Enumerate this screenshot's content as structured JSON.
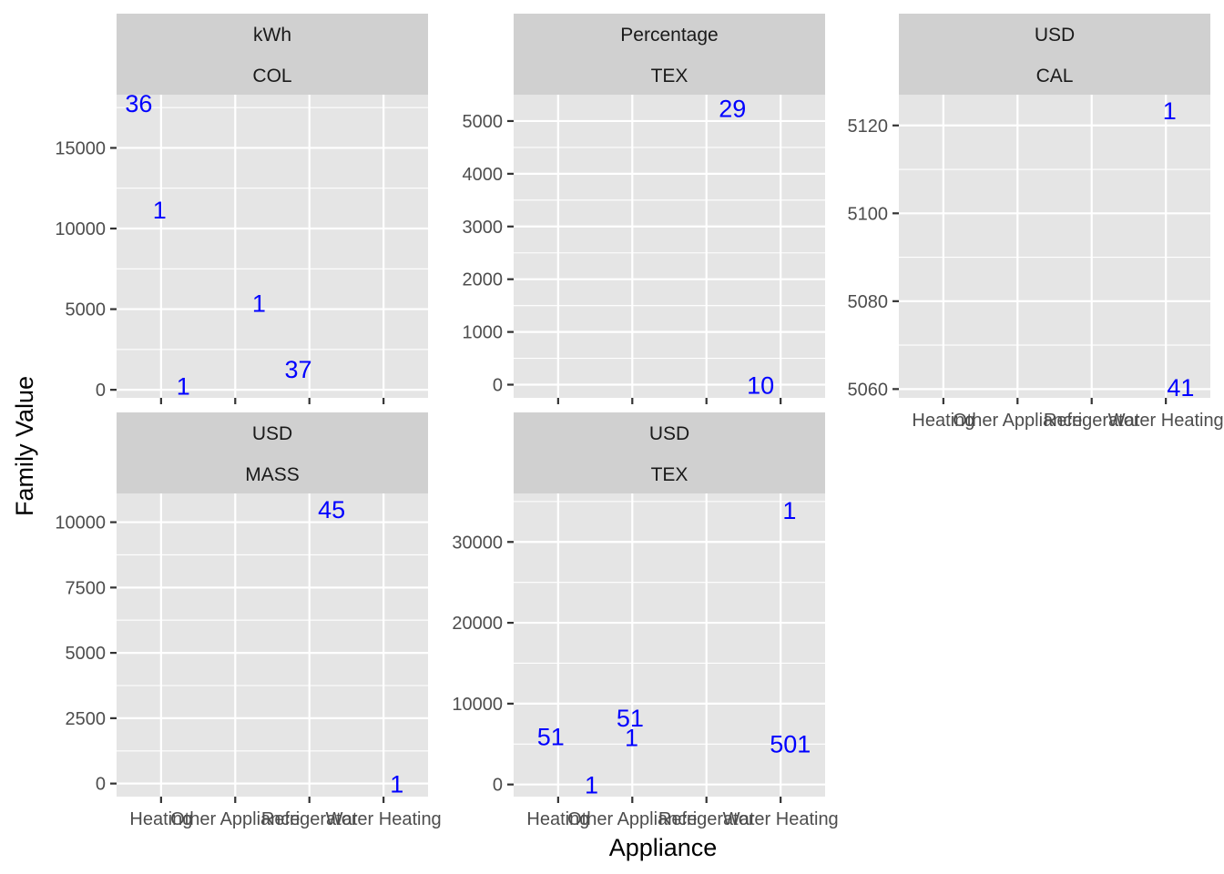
{
  "chart_data": {
    "type": "scatter",
    "xlabel": "Appliance",
    "ylabel": "Family Value",
    "x_categories": [
      "Heating",
      "Other Appliance",
      "Refrigerator",
      "Water Heating"
    ],
    "label_color": "#0000ff",
    "panels": [
      {
        "strip_top": "kWh",
        "strip_bottom": "COL",
        "ylim": [
          -500,
          18300
        ],
        "y_ticks": [
          0,
          5000,
          10000,
          15000
        ],
        "show_x_labels": false,
        "points": [
          {
            "x": 0.7,
            "y": 17800,
            "label": "36"
          },
          {
            "x": 0.98,
            "y": 11200,
            "label": "1"
          },
          {
            "x": 1.3,
            "y": 250,
            "label": "1"
          },
          {
            "x": 2.32,
            "y": 5400,
            "label": "1"
          },
          {
            "x": 2.85,
            "y": 1300,
            "label": "37"
          }
        ]
      },
      {
        "strip_top": "Percentage",
        "strip_bottom": "TEX",
        "ylim": [
          -250,
          5500
        ],
        "y_ticks": [
          0,
          1000,
          2000,
          3000,
          4000,
          5000
        ],
        "show_x_labels": false,
        "points": [
          {
            "x": 3.35,
            "y": 5250,
            "label": "29"
          },
          {
            "x": 3.73,
            "y": 0,
            "label": "10"
          }
        ]
      },
      {
        "strip_top": "USD",
        "strip_bottom": "CAL",
        "ylim": [
          5058,
          5127
        ],
        "y_ticks": [
          5060,
          5080,
          5100,
          5120
        ],
        "show_x_labels": true,
        "points": [
          {
            "x": 4.05,
            "y": 5123.5,
            "label": "1"
          },
          {
            "x": 4.2,
            "y": 5060.5,
            "label": "41"
          }
        ]
      },
      {
        "strip_top": "USD",
        "strip_bottom": "MASS",
        "ylim": [
          -500,
          11100
        ],
        "y_ticks": [
          0,
          2500,
          5000,
          7500,
          10000
        ],
        "show_x_labels": true,
        "points": [
          {
            "x": 3.3,
            "y": 10500,
            "label": "45"
          },
          {
            "x": 4.18,
            "y": 0,
            "label": "1"
          }
        ]
      },
      {
        "strip_top": "USD",
        "strip_bottom": "TEX",
        "ylim": [
          -1500,
          36000
        ],
        "y_ticks": [
          0,
          10000,
          20000,
          30000
        ],
        "show_x_labels": true,
        "points": [
          {
            "x": 0.9,
            "y": 6000,
            "label": "51"
          },
          {
            "x": 1.45,
            "y": 0,
            "label": "1"
          },
          {
            "x": 1.97,
            "y": 8300,
            "label": "51"
          },
          {
            "x": 1.99,
            "y": 5900,
            "label": "1"
          },
          {
            "x": 4.12,
            "y": 34000,
            "label": "1"
          },
          {
            "x": 4.13,
            "y": 5100,
            "label": "501"
          }
        ]
      }
    ]
  }
}
